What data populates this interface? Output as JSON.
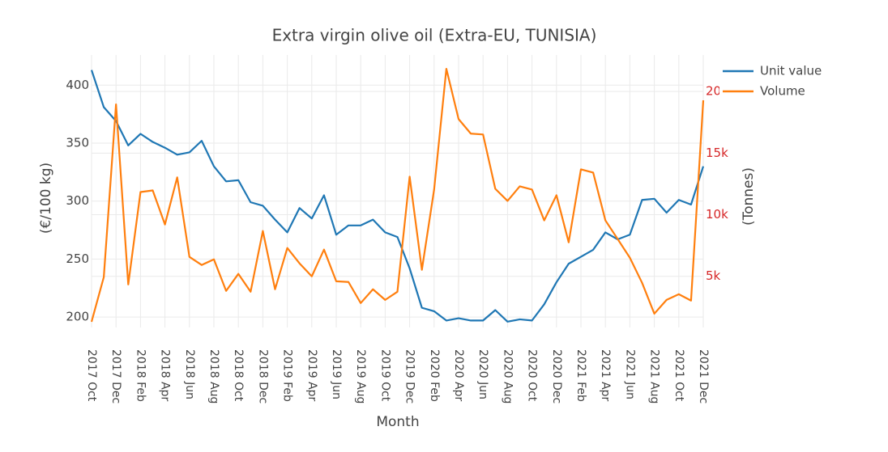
{
  "chart_data": {
    "type": "line",
    "title": "Extra virgin olive oil (Extra-EU, TUNISIA)",
    "x_label": "Month",
    "y_label": "(€/100 kg)",
    "y2_label": "(Tonnes)",
    "categories": [
      "2017 Oct",
      null,
      "2017 Dec",
      null,
      "2018 Feb",
      null,
      "2018 Apr",
      null,
      "2018 Jun",
      null,
      "2018 Aug",
      null,
      "2018 Oct",
      null,
      "2018 Dec",
      null,
      "2019 Feb",
      null,
      "2019 Apr",
      null,
      "2019 Jun",
      null,
      "2019 Aug",
      null,
      "2019 Oct",
      null,
      "2019 Dec",
      null,
      "2020 Feb",
      null,
      "2020 Apr",
      null,
      "2020 Jun",
      null,
      "2020 Aug",
      null,
      "2020 Oct",
      null,
      "2020 Dec",
      null,
      "2021 Feb",
      null,
      "2021 Apr",
      null,
      "2021 Jun",
      null,
      "2021 Aug",
      null,
      "2021 Oct",
      null,
      "2021 Dec"
    ],
    "series": [
      {
        "name": "Unit value",
        "color": "#1f77b4",
        "values": [
          413,
          381,
          369,
          348,
          358,
          351,
          346,
          340,
          342,
          352,
          330,
          317,
          318,
          299,
          296,
          284,
          273,
          294,
          285,
          305,
          271,
          279,
          279,
          284,
          273,
          269,
          242,
          208,
          205,
          197,
          199,
          197,
          197,
          206,
          196,
          198,
          197,
          211,
          230,
          246,
          252,
          258,
          273,
          267,
          271,
          301,
          302,
          290,
          301,
          297,
          330
        ]
      },
      {
        "name": "Volume",
        "color": "#ff7f0e",
        "axis": "y2",
        "values": [
          1316,
          4934,
          18950,
          4340,
          11840,
          11970,
          9210,
          13030,
          6580,
          5920,
          6380,
          3820,
          5200,
          3750,
          8680,
          3950,
          7300,
          6050,
          5000,
          7170,
          4600,
          4540,
          2830,
          3950,
          3090,
          3750,
          13090,
          5530,
          12040,
          21840,
          17760,
          16580,
          16510,
          12100,
          11120,
          12300,
          12040,
          9540,
          11580,
          7760,
          13680,
          13420,
          9540,
          8030,
          6510,
          4470,
          1970,
          3090,
          3550,
          3030,
          19280
        ]
      }
    ],
    "ylim": [
      191,
      426
    ],
    "yticks": [
      200,
      250,
      300,
      350,
      400
    ],
    "y2lim": [
      850,
      22960
    ],
    "y2ticks": [
      {
        "value": 5000,
        "label": "5k"
      },
      {
        "value": 10000,
        "label": "10k"
      },
      {
        "value": 15000,
        "label": "15k"
      },
      {
        "value": 20000,
        "label": "20k"
      }
    ],
    "y2_tick_color": "#d62728",
    "grid": true,
    "legend": "top-right"
  }
}
